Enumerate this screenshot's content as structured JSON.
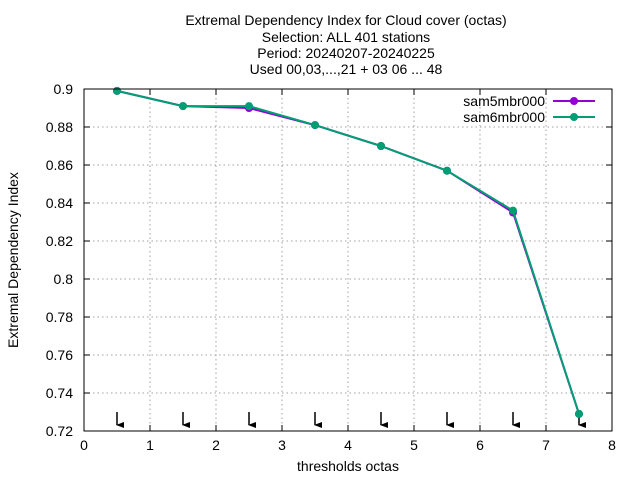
{
  "chart_data": {
    "type": "line",
    "title_lines": [
      "Extremal Dependency Index  for Cloud cover (octas)",
      "Selection: ALL    401 stations",
      "Period: 20240207-20240225",
      "Used 00,03,...,21 + 03 06 ... 48"
    ],
    "xlabel": "thresholds octas",
    "ylabel": "Extremal Dependency Index",
    "xlim": [
      0,
      8
    ],
    "ylim": [
      0.72,
      0.9
    ],
    "x_ticks": [
      "0",
      "1",
      "2",
      "3",
      "4",
      "5",
      "6",
      "7",
      "8"
    ],
    "y_ticks": [
      "0.72",
      "0.74",
      "0.76",
      "0.78",
      "0.8",
      "0.82",
      "0.84",
      "0.86",
      "0.88",
      "0.9"
    ],
    "grid": true,
    "legend_position": "top-right",
    "x": [
      0.5,
      1.5,
      2.5,
      3.5,
      4.5,
      5.5,
      6.5,
      7.5
    ],
    "series": [
      {
        "name": "sam5mbr000",
        "color": "#9400d3",
        "marker": "filled-circle",
        "values": [
          0.899,
          0.891,
          0.89,
          0.881,
          0.87,
          0.857,
          0.835,
          0.729
        ]
      },
      {
        "name": "sam6mbr000",
        "color": "#009e73",
        "marker": "filled-circle",
        "values": [
          0.899,
          0.891,
          0.891,
          0.881,
          0.87,
          0.857,
          0.836,
          0.729
        ]
      }
    ],
    "threshold_arrows_x": [
      0.5,
      1.5,
      2.5,
      3.5,
      4.5,
      5.5,
      6.5,
      7.5
    ]
  }
}
